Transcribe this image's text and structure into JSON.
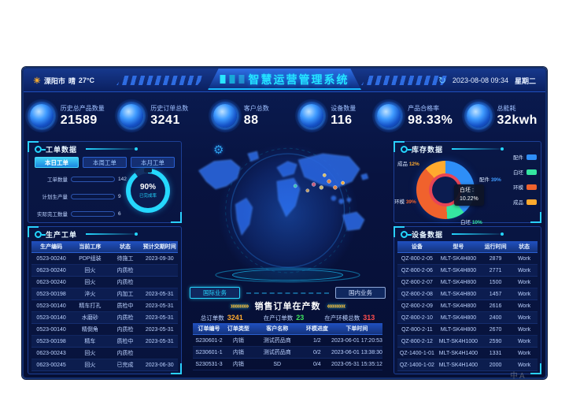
{
  "header": {
    "city": "溧阳市",
    "weather": "晴",
    "temp": "27°C",
    "title": "智慧运营管理系统",
    "datetime": "2023-08-08 09:34",
    "weekday": "星期二"
  },
  "kpis": [
    {
      "label": "历史总产品数量",
      "value": "21589"
    },
    {
      "label": "历史订单总数",
      "value": "3241"
    },
    {
      "label": "客户总数",
      "value": "88"
    },
    {
      "label": "设备数量",
      "value": "116"
    },
    {
      "label": "产品合格率",
      "value": "98.33%"
    },
    {
      "label": "总能耗",
      "value": "32kwh"
    }
  ],
  "work_orders": {
    "title": "工单数据",
    "tabs": [
      {
        "label": "本日工单",
        "active": true
      },
      {
        "label": "本周工单",
        "active": false
      },
      {
        "label": "本月工单",
        "active": false
      }
    ],
    "bars": [
      {
        "label": "工单数量",
        "value": 142,
        "max": 150,
        "color": "#35e0c0"
      },
      {
        "label": "计划生产量",
        "value": 9,
        "max": 150,
        "color": "#ffaa2e"
      },
      {
        "label": "实际完工数量",
        "value": 6,
        "max": 150,
        "color": "#b07af0"
      }
    ],
    "gauge": {
      "percent": 90,
      "value": "90%",
      "label": "已完成率"
    }
  },
  "production": {
    "title": "生产工单",
    "columns": [
      "生产编码",
      "当前工序",
      "状态",
      "预计交期时间"
    ],
    "rows": [
      [
        "0523-00240",
        "PDP组装",
        "待施工",
        "2023-09-30"
      ],
      [
        "0623-00240",
        "回火",
        "内质检",
        ""
      ],
      [
        "0623-00240",
        "回火",
        "内质检",
        ""
      ],
      [
        "0523-00198",
        "淬火",
        "内加工",
        "2023-05-31"
      ],
      [
        "0523-00140",
        "精车打孔",
        "质检中",
        "2023-05-31"
      ],
      [
        "0523-00140",
        "水磨砂",
        "内质检",
        "2023-05-31"
      ],
      [
        "0523-00140",
        "精倒角",
        "内质检",
        "2023-05-31"
      ],
      [
        "0523-00198",
        "精车",
        "质检中",
        "2023-05-31"
      ],
      [
        "0623-00243",
        "回火",
        "内质检",
        ""
      ],
      [
        "0623-00245",
        "回火",
        "已完成",
        "2023-06-30"
      ]
    ]
  },
  "map": {
    "business_buttons": [
      {
        "label": "国际业务",
        "active": true
      },
      {
        "label": "国内业务",
        "active": false
      }
    ]
  },
  "sales": {
    "title": "销售订单在产数",
    "arrows_left": "»»»»»",
    "arrows_right": "«««««",
    "stats": [
      {
        "label": "总订单数",
        "value": "3241",
        "color": "#ffaa2e"
      },
      {
        "label": "在产订单数",
        "value": "23",
        "color": "#3ee65f"
      },
      {
        "label": "在产环模总数",
        "value": "313",
        "color": "#ff4d4d"
      }
    ],
    "columns": [
      "订单编号",
      "订单类型",
      "客户名称",
      "环模进度",
      "下单时间"
    ],
    "rows": [
      [
        "S230601-2",
        "内销",
        "测试药品商",
        "1/2",
        "2023-06-01 17:20:53"
      ],
      [
        "S230601-1",
        "内销",
        "测试药品商",
        "0/2",
        "2023-06-01 13:38:30"
      ],
      [
        "S230531-3",
        "内销",
        "SD",
        "0/4",
        "2023-05-31 15:35:12"
      ]
    ]
  },
  "inventory": {
    "title": "库存数据",
    "chart_data": {
      "type": "pie",
      "labels": [
        "配件",
        "白坯",
        "环模",
        "成品"
      ],
      "values": [
        39,
        10,
        39,
        12
      ],
      "colors": [
        "#2e8ef7",
        "#35e6a1",
        "#f0622d",
        "#ffaa2e"
      ],
      "legend_position": "right"
    },
    "callouts": [
      {
        "label": "成品",
        "value": "12%"
      },
      {
        "label": "配件",
        "value": "39%"
      },
      {
        "label": "环模",
        "value": "39%"
      },
      {
        "label": "白坯",
        "value": "10%"
      }
    ],
    "tooltip": {
      "label": "白坯 :",
      "value": "10.22%"
    }
  },
  "equipment": {
    "title": "设备数据",
    "columns": [
      "设备",
      "型号",
      "运行时间",
      "状态"
    ],
    "rows": [
      [
        "QZ-800-2-05",
        "MLT-SK4H800",
        "2879",
        "Work"
      ],
      [
        "QZ-800-2-06",
        "MLT-SK4H800",
        "2771",
        "Work"
      ],
      [
        "QZ-800-2-07",
        "MLT-SK4H800",
        "1500",
        "Work"
      ],
      [
        "QZ-800-2-08",
        "MLT-SK4H800",
        "1457",
        "Work"
      ],
      [
        "QZ-800-2-09",
        "MLT-SK4H800",
        "2616",
        "Work"
      ],
      [
        "QZ-800-2-10",
        "MLT-SK4H800",
        "2400",
        "Work"
      ],
      [
        "QZ-800-2-11",
        "MLT-SK4H800",
        "2670",
        "Work"
      ],
      [
        "QZ-800-2-12",
        "MLT-SK4H1000",
        "2590",
        "Work"
      ],
      [
        "QZ-1400-1-01",
        "MLT-SK4H1400",
        "1331",
        "Work"
      ],
      [
        "QZ-1400-1-02",
        "MLT-SK4H1400",
        "2000",
        "Work"
      ]
    ]
  },
  "watermark": "中A"
}
